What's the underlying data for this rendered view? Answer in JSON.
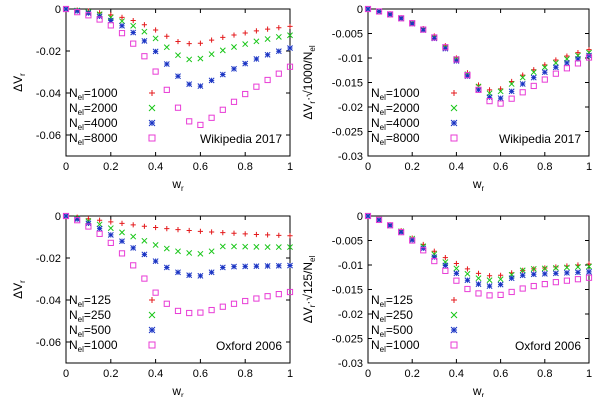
{
  "chart_data": [
    {
      "type": "scatter",
      "xlabel": "w",
      "xlabel_sub": "r",
      "ylabel": "ΔV",
      "ylabel_sub": "r",
      "ylabel_suffix": "",
      "ylabel_suffix_sub": "",
      "xlim": [
        0,
        1
      ],
      "ylim": [
        -0.07,
        0
      ],
      "xticks": [
        "0",
        "0.2",
        "0.4",
        "0.6",
        "0.8",
        "1"
      ],
      "yticks": [
        "0",
        "-0.02",
        "-0.04",
        "-0.06"
      ],
      "annotation": "Wikipedia 2017",
      "legend_position": "bottom-left",
      "series": [
        {
          "name": "N",
          "name_sub": "el",
          "name_value": "=1000",
          "color": "#e41a1c",
          "marker": "plus",
          "x": [
            0,
            0.05,
            0.1,
            0.15,
            0.2,
            0.25,
            0.3,
            0.35,
            0.4,
            0.45,
            0.5,
            0.55,
            0.6,
            0.65,
            0.7,
            0.75,
            0.8,
            0.85,
            0.9,
            0.95,
            1.0
          ],
          "y": [
            0,
            -0.0005,
            -0.001,
            -0.0018,
            -0.0028,
            -0.004,
            -0.0055,
            -0.0075,
            -0.01,
            -0.013,
            -0.0155,
            -0.0165,
            -0.0163,
            -0.0148,
            -0.0135,
            -0.0124,
            -0.0114,
            -0.0104,
            -0.0096,
            -0.0089,
            -0.0083
          ]
        },
        {
          "name": "N",
          "name_sub": "el",
          "name_value": "=2000",
          "color": "#19c619",
          "marker": "cross",
          "x": [
            0,
            0.05,
            0.1,
            0.15,
            0.2,
            0.25,
            0.3,
            0.35,
            0.4,
            0.45,
            0.5,
            0.55,
            0.6,
            0.65,
            0.7,
            0.75,
            0.8,
            0.85,
            0.9,
            0.95,
            1.0
          ],
          "y": [
            0,
            -0.0007,
            -0.0015,
            -0.0025,
            -0.004,
            -0.0058,
            -0.008,
            -0.0108,
            -0.014,
            -0.0182,
            -0.022,
            -0.024,
            -0.0236,
            -0.0215,
            -0.0197,
            -0.0181,
            -0.0167,
            -0.0154,
            -0.0143,
            -0.0133,
            -0.0125
          ]
        },
        {
          "name": "N",
          "name_sub": "el",
          "name_value": "=4000",
          "color": "#1a34c4",
          "marker": "star",
          "x": [
            0,
            0.05,
            0.1,
            0.15,
            0.2,
            0.25,
            0.3,
            0.35,
            0.4,
            0.45,
            0.5,
            0.55,
            0.6,
            0.65,
            0.7,
            0.75,
            0.8,
            0.85,
            0.9,
            0.95,
            1.0
          ],
          "y": [
            0,
            -0.001,
            -0.002,
            -0.0035,
            -0.0055,
            -0.008,
            -0.0112,
            -0.0152,
            -0.0202,
            -0.0262,
            -0.032,
            -0.0358,
            -0.0367,
            -0.034,
            -0.0312,
            -0.0285,
            -0.026,
            -0.0238,
            -0.0218,
            -0.0201,
            -0.0186
          ]
        },
        {
          "name": "N",
          "name_sub": "el",
          "name_value": "=8000",
          "color": "#e83cd6",
          "marker": "square",
          "x": [
            0,
            0.05,
            0.1,
            0.15,
            0.2,
            0.25,
            0.3,
            0.35,
            0.4,
            0.45,
            0.5,
            0.55,
            0.6,
            0.65,
            0.7,
            0.75,
            0.8,
            0.85,
            0.9,
            0.95,
            1.0
          ],
          "y": [
            0,
            -0.0015,
            -0.003,
            -0.005,
            -0.0078,
            -0.0115,
            -0.0165,
            -0.0225,
            -0.0298,
            -0.0385,
            -0.047,
            -0.0535,
            -0.0552,
            -0.0518,
            -0.048,
            -0.0442,
            -0.0405,
            -0.037,
            -0.0338,
            -0.0308,
            -0.0275
          ]
        }
      ]
    },
    {
      "type": "scatter",
      "xlabel": "w",
      "xlabel_sub": "r",
      "ylabel": "ΔV",
      "ylabel_sub": "r",
      "ylabel_suffix": "·√1000/N",
      "ylabel_suffix_sub": "el",
      "xlim": [
        0,
        1
      ],
      "ylim": [
        -0.03,
        0
      ],
      "xticks": [
        "0",
        "0.2",
        "0.4",
        "0.6",
        "0.8",
        "1"
      ],
      "yticks": [
        "0",
        "-0.005",
        "-0.01",
        "-0.015",
        "-0.02",
        "-0.025",
        "-0.03"
      ],
      "annotation": "Wikipedia 2017",
      "legend_position": "bottom-left",
      "series": [
        {
          "name": "N",
          "name_sub": "el",
          "name_value": "=1000",
          "color": "#e41a1c",
          "marker": "plus",
          "x": [
            0,
            0.05,
            0.1,
            0.15,
            0.2,
            0.25,
            0.3,
            0.35,
            0.4,
            0.45,
            0.5,
            0.55,
            0.6,
            0.65,
            0.7,
            0.75,
            0.8,
            0.85,
            0.9,
            0.95,
            1.0
          ],
          "y": [
            0,
            -0.0005,
            -0.001,
            -0.0018,
            -0.0028,
            -0.004,
            -0.0055,
            -0.0075,
            -0.01,
            -0.013,
            -0.0155,
            -0.0165,
            -0.0163,
            -0.0148,
            -0.0135,
            -0.0124,
            -0.0114,
            -0.0104,
            -0.0096,
            -0.0089,
            -0.0083
          ]
        },
        {
          "name": "N",
          "name_sub": "el",
          "name_value": "=2000",
          "color": "#19c619",
          "marker": "cross",
          "x": [
            0,
            0.05,
            0.1,
            0.15,
            0.2,
            0.25,
            0.3,
            0.35,
            0.4,
            0.45,
            0.5,
            0.55,
            0.6,
            0.65,
            0.7,
            0.75,
            0.8,
            0.85,
            0.9,
            0.95,
            1.0
          ],
          "y": [
            0,
            -0.0005,
            -0.0011,
            -0.0019,
            -0.0029,
            -0.0042,
            -0.0058,
            -0.0078,
            -0.0102,
            -0.0133,
            -0.0158,
            -0.0172,
            -0.0168,
            -0.0153,
            -0.014,
            -0.0129,
            -0.0119,
            -0.011,
            -0.0102,
            -0.0095,
            -0.0089
          ]
        },
        {
          "name": "N",
          "name_sub": "el",
          "name_value": "=4000",
          "color": "#1a34c4",
          "marker": "star",
          "x": [
            0,
            0.05,
            0.1,
            0.15,
            0.2,
            0.25,
            0.3,
            0.35,
            0.4,
            0.45,
            0.5,
            0.55,
            0.6,
            0.65,
            0.7,
            0.75,
            0.8,
            0.85,
            0.9,
            0.95,
            1.0
          ],
          "y": [
            0,
            -0.0005,
            -0.0011,
            -0.0019,
            -0.003,
            -0.0043,
            -0.006,
            -0.0081,
            -0.0106,
            -0.0137,
            -0.0165,
            -0.018,
            -0.0182,
            -0.0168,
            -0.0153,
            -0.014,
            -0.0129,
            -0.0119,
            -0.011,
            -0.0102,
            -0.0095
          ]
        },
        {
          "name": "N",
          "name_sub": "el",
          "name_value": "=8000",
          "color": "#e83cd6",
          "marker": "square",
          "x": [
            0,
            0.05,
            0.1,
            0.15,
            0.2,
            0.25,
            0.3,
            0.35,
            0.4,
            0.45,
            0.5,
            0.55,
            0.6,
            0.65,
            0.7,
            0.75,
            0.8,
            0.85,
            0.9,
            0.95,
            1.0
          ],
          "y": [
            0,
            -0.0005,
            -0.0011,
            -0.0019,
            -0.0029,
            -0.0042,
            -0.0058,
            -0.0078,
            -0.0103,
            -0.0135,
            -0.0165,
            -0.0188,
            -0.0193,
            -0.0183,
            -0.017,
            -0.0157,
            -0.0144,
            -0.0132,
            -0.0121,
            -0.0111,
            -0.0099
          ]
        }
      ]
    },
    {
      "type": "scatter",
      "xlabel": "w",
      "xlabel_sub": "r",
      "ylabel": "ΔV",
      "ylabel_sub": "r",
      "ylabel_suffix": "",
      "ylabel_suffix_sub": "",
      "xlim": [
        0,
        1
      ],
      "ylim": [
        -0.07,
        0
      ],
      "xticks": [
        "0",
        "0.2",
        "0.4",
        "0.6",
        "0.8",
        "1"
      ],
      "yticks": [
        "0",
        "-0.02",
        "-0.04",
        "-0.06"
      ],
      "annotation": "Oxford 2006",
      "legend_position": "bottom-left",
      "series": [
        {
          "name": "N",
          "name_sub": "el",
          "name_value": "=125",
          "color": "#e41a1c",
          "marker": "plus",
          "x": [
            0,
            0.05,
            0.1,
            0.15,
            0.2,
            0.25,
            0.3,
            0.35,
            0.4,
            0.45,
            0.5,
            0.55,
            0.6,
            0.65,
            0.7,
            0.75,
            0.8,
            0.85,
            0.9,
            0.95,
            1.0
          ],
          "y": [
            0,
            -0.0006,
            -0.0013,
            -0.002,
            -0.0028,
            -0.0035,
            -0.0042,
            -0.0049,
            -0.0055,
            -0.006,
            -0.0065,
            -0.0069,
            -0.0073,
            -0.0076,
            -0.0079,
            -0.0082,
            -0.0085,
            -0.0088,
            -0.009,
            -0.0092,
            -0.0094
          ]
        },
        {
          "name": "N",
          "name_sub": "el",
          "name_value": "=250",
          "color": "#19c619",
          "marker": "cross",
          "x": [
            0,
            0.05,
            0.1,
            0.15,
            0.2,
            0.25,
            0.3,
            0.35,
            0.4,
            0.45,
            0.5,
            0.55,
            0.6,
            0.65,
            0.7,
            0.75,
            0.8,
            0.85,
            0.9,
            0.95,
            1.0
          ],
          "y": [
            0,
            -0.001,
            -0.0025,
            -0.004,
            -0.0058,
            -0.0078,
            -0.0098,
            -0.0118,
            -0.0138,
            -0.0155,
            -0.0168,
            -0.0176,
            -0.018,
            -0.0168,
            -0.0145,
            -0.0145,
            -0.0146,
            -0.0147,
            -0.0148,
            -0.0148,
            -0.0148
          ]
        },
        {
          "name": "N",
          "name_sub": "el",
          "name_value": "=500",
          "color": "#1a34c4",
          "marker": "star",
          "x": [
            0,
            0.05,
            0.1,
            0.15,
            0.2,
            0.25,
            0.3,
            0.35,
            0.4,
            0.45,
            0.5,
            0.55,
            0.6,
            0.65,
            0.7,
            0.75,
            0.8,
            0.85,
            0.9,
            0.95,
            1.0
          ],
          "y": [
            0,
            -0.0015,
            -0.0035,
            -0.006,
            -0.009,
            -0.012,
            -0.0152,
            -0.0183,
            -0.0215,
            -0.0245,
            -0.0268,
            -0.0282,
            -0.0285,
            -0.0268,
            -0.0245,
            -0.0241,
            -0.024,
            -0.0239,
            -0.0238,
            -0.0237,
            -0.0236
          ]
        },
        {
          "name": "N",
          "name_sub": "el",
          "name_value": "=1000",
          "color": "#e83cd6",
          "marker": "square",
          "x": [
            0,
            0.05,
            0.1,
            0.15,
            0.2,
            0.25,
            0.3,
            0.35,
            0.4,
            0.45,
            0.5,
            0.55,
            0.6,
            0.65,
            0.7,
            0.75,
            0.8,
            0.85,
            0.9,
            0.95,
            1.0
          ],
          "y": [
            0,
            -0.002,
            -0.005,
            -0.0085,
            -0.0128,
            -0.0178,
            -0.0235,
            -0.0298,
            -0.0365,
            -0.0418,
            -0.0452,
            -0.0462,
            -0.046,
            -0.0448,
            -0.0432,
            -0.0418,
            -0.0405,
            -0.0393,
            -0.0382,
            -0.0372,
            -0.0362
          ]
        }
      ]
    },
    {
      "type": "scatter",
      "xlabel": "w",
      "xlabel_sub": "r",
      "ylabel": "ΔV",
      "ylabel_sub": "r",
      "ylabel_suffix": "·√125/N",
      "ylabel_suffix_sub": "el",
      "xlim": [
        0,
        1
      ],
      "ylim": [
        -0.03,
        0
      ],
      "xticks": [
        "0",
        "0.2",
        "0.4",
        "0.6",
        "0.8",
        "1"
      ],
      "yticks": [
        "0",
        "-0.005",
        "-0.01",
        "-0.015",
        "-0.02",
        "-0.025",
        "-0.03"
      ],
      "annotation": "Oxford 2006",
      "legend_position": "bottom-left",
      "series": [
        {
          "name": "N",
          "name_sub": "el",
          "name_value": "=125",
          "color": "#e41a1c",
          "marker": "plus",
          "x": [
            0,
            0.05,
            0.1,
            0.15,
            0.2,
            0.25,
            0.3,
            0.35,
            0.4,
            0.45,
            0.5,
            0.55,
            0.6,
            0.65,
            0.7,
            0.75,
            0.8,
            0.85,
            0.9,
            0.95,
            1.0
          ],
          "y": [
            0,
            -0.0008,
            -0.0018,
            -0.003,
            -0.0045,
            -0.0058,
            -0.0072,
            -0.0085,
            -0.0097,
            -0.0108,
            -0.0117,
            -0.0122,
            -0.0121,
            -0.0116,
            -0.0111,
            -0.0108,
            -0.0106,
            -0.0104,
            -0.0102,
            -0.01,
            -0.0098
          ]
        },
        {
          "name": "N",
          "name_sub": "el",
          "name_value": "=250",
          "color": "#19c619",
          "marker": "cross",
          "x": [
            0,
            0.05,
            0.1,
            0.15,
            0.2,
            0.25,
            0.3,
            0.35,
            0.4,
            0.45,
            0.5,
            0.55,
            0.6,
            0.65,
            0.7,
            0.75,
            0.8,
            0.85,
            0.9,
            0.95,
            1.0
          ],
          "y": [
            0,
            -0.0008,
            -0.0019,
            -0.0031,
            -0.0046,
            -0.0062,
            -0.0078,
            -0.0094,
            -0.0107,
            -0.0118,
            -0.0127,
            -0.0131,
            -0.0129,
            -0.012,
            -0.0111,
            -0.0108,
            -0.0107,
            -0.0106,
            -0.0105,
            -0.0104,
            -0.0103
          ]
        },
        {
          "name": "N",
          "name_sub": "el",
          "name_value": "=500",
          "color": "#1a34c4",
          "marker": "star",
          "x": [
            0,
            0.05,
            0.1,
            0.15,
            0.2,
            0.25,
            0.3,
            0.35,
            0.4,
            0.45,
            0.5,
            0.55,
            0.6,
            0.65,
            0.7,
            0.75,
            0.8,
            0.85,
            0.9,
            0.95,
            1.0
          ],
          "y": [
            0,
            -0.0008,
            -0.0019,
            -0.0033,
            -0.0049,
            -0.0066,
            -0.0084,
            -0.0101,
            -0.0117,
            -0.0131,
            -0.0139,
            -0.0143,
            -0.014,
            -0.0127,
            -0.0121,
            -0.0119,
            -0.0118,
            -0.0117,
            -0.0116,
            -0.0115,
            -0.0114
          ]
        },
        {
          "name": "N",
          "name_sub": "el",
          "name_value": "=1000",
          "color": "#e83cd6",
          "marker": "square",
          "x": [
            0,
            0.05,
            0.1,
            0.15,
            0.2,
            0.25,
            0.3,
            0.35,
            0.4,
            0.45,
            0.5,
            0.55,
            0.6,
            0.65,
            0.7,
            0.75,
            0.8,
            0.85,
            0.9,
            0.95,
            1.0
          ],
          "y": [
            0,
            -0.0008,
            -0.0019,
            -0.0033,
            -0.005,
            -0.007,
            -0.0092,
            -0.0112,
            -0.0132,
            -0.0149,
            -0.0158,
            -0.0162,
            -0.0161,
            -0.0155,
            -0.0148,
            -0.0143,
            -0.0139,
            -0.0135,
            -0.0132,
            -0.0129,
            -0.0126
          ]
        }
      ]
    }
  ]
}
